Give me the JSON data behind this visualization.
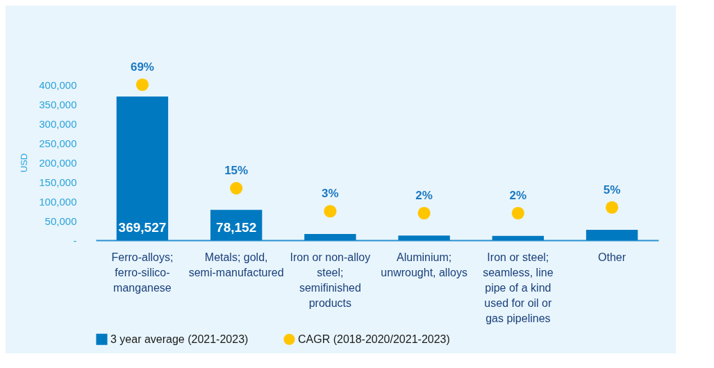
{
  "chart_data": {
    "type": "bar",
    "ylabel": "USD",
    "categories": [
      "Ferro-alloys; ferro-silico-manganese",
      "Metals; gold, semi-manufactured",
      "Iron or non-alloy steel; semifinished products",
      "Aluminium; unwrought, alloys",
      "Iron or steel; seamless, line pipe of a kind used for oil or gas pipelines",
      "Other"
    ],
    "series": [
      {
        "name": "3 year average (2021-2023)",
        "color": "#0079c1",
        "values": [
          369527,
          78152,
          16000,
          12000,
          11000,
          27000
        ],
        "value_labels": [
          "369,527",
          "78,152",
          null,
          null,
          null,
          null
        ]
      },
      {
        "name": "CAGR (2018-2020/2021-2023)",
        "type": "scatter",
        "axis": "y2",
        "color": "#ffc600",
        "values": [
          69,
          15,
          3,
          2,
          2,
          5
        ],
        "value_labels": [
          "69%",
          "15%",
          "3%",
          "2%",
          "2%",
          "5%"
        ]
      }
    ],
    "ylim": [
      0,
      400000
    ],
    "yticks": [
      {
        "value": 0,
        "label": "-"
      },
      {
        "value": 50000,
        "label": "50,000"
      },
      {
        "value": 100000,
        "label": "100,000"
      },
      {
        "value": 150000,
        "label": "150,000"
      },
      {
        "value": 200000,
        "label": "200,000"
      },
      {
        "value": 250000,
        "label": "250,000"
      },
      {
        "value": 300000,
        "label": "300,000"
      },
      {
        "value": 350000,
        "label": "350,000"
      },
      {
        "value": 400000,
        "label": "400,000"
      }
    ],
    "grid": false,
    "legend": "bottom",
    "marker": "circle"
  }
}
